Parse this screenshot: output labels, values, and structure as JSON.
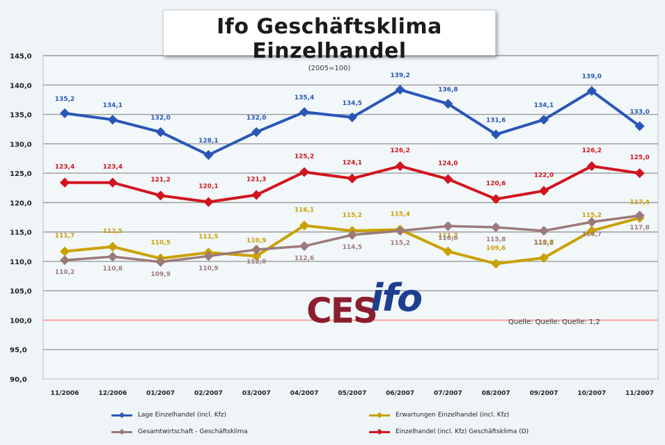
{
  "title": "Ifo Geschäftsklima Einzelhandel",
  "subtitle": "(2005=100)",
  "source": "Quelle: Quelle: Quelle: 1,2",
  "logo": {
    "left": "CES",
    "right": "ifo"
  },
  "colors": {
    "lage": "#2a56b8",
    "erwartungen": "#c9a100",
    "gesamt": "#9c7a7a",
    "klima": "#d1141e",
    "reference": "#f4a0a0",
    "grid": "#9a9a9a",
    "plot_bg": "#f2f7fa"
  },
  "chart_data": {
    "type": "line",
    "title": "Ifo Geschäftsklima Einzelhandel",
    "subtitle": "(2005=100)",
    "categories": [
      "11/2006",
      "12/2006",
      "01/2007",
      "02/2007",
      "03/2007",
      "04/2007",
      "05/2007",
      "06/2007",
      "07/2007",
      "08/2007",
      "09/2007",
      "10/2007",
      "11/2007"
    ],
    "ylim": [
      90,
      145
    ],
    "yticks": [
      "90,0",
      "95,0",
      "100,0",
      "105,0",
      "110,0",
      "115,0",
      "120,0",
      "125,0",
      "130,0",
      "135,0",
      "140,0",
      "145,0"
    ],
    "grid": true,
    "legend_position": "bottom",
    "reference_line": 100,
    "series": [
      {
        "key": "lage",
        "name": "Lage Einzelhandel (incl. Kfz)",
        "values": [
          135.2,
          134.1,
          132.0,
          128.1,
          132.0,
          135.4,
          134.5,
          139.2,
          136.8,
          131.6,
          134.1,
          139.0,
          133.0
        ],
        "labels": [
          "135,2",
          "134,1",
          "132,0",
          "128,1",
          "132,0",
          "135,4",
          "134,5",
          "139,2",
          "136,8",
          "131,6",
          "134,1",
          "139,0",
          "133,0"
        ]
      },
      {
        "key": "klima",
        "name": "Einzelhandel (incl. Kfz) Geschäftsklima (D)",
        "values": [
          123.4,
          123.4,
          121.2,
          120.1,
          121.3,
          125.2,
          124.1,
          126.2,
          124.0,
          120.6,
          122.0,
          126.2,
          125.0
        ],
        "labels": [
          "123,4",
          "123,4",
          "121,2",
          "120,1",
          "121,3",
          "125,2",
          "124,1",
          "126,2",
          "124,0",
          "120,6",
          "122,0",
          "126,2",
          "125,0"
        ]
      },
      {
        "key": "erwartungen",
        "name": "Erwartungen Einzelhandel (incl. Kfz)",
        "values": [
          111.7,
          112.5,
          110.5,
          111.5,
          110.9,
          116.1,
          115.2,
          115.4,
          111.7,
          109.6,
          110.6,
          115.2,
          117.4
        ],
        "labels": [
          "111,7",
          "112,5",
          "110,5",
          "111,5",
          "110,9",
          "116,1",
          "115,2",
          "115,4",
          "111,7",
          "109,6",
          "110,6",
          "115,2",
          "117,4"
        ]
      },
      {
        "key": "gesamt",
        "name": "Gesamtwirtschaft - Geschäftsklima",
        "values": [
          110.2,
          110.8,
          109.9,
          110.9,
          112.0,
          112.6,
          114.5,
          115.2,
          116.0,
          115.8,
          115.2,
          116.7,
          117.8
        ],
        "labels": [
          "110,2",
          "110,8",
          "109,9",
          "110,9",
          "112,0",
          "112,6",
          "114,5",
          "115,2",
          "116,0",
          "115,8",
          "115,2",
          "116,7",
          "117,8"
        ]
      }
    ]
  }
}
